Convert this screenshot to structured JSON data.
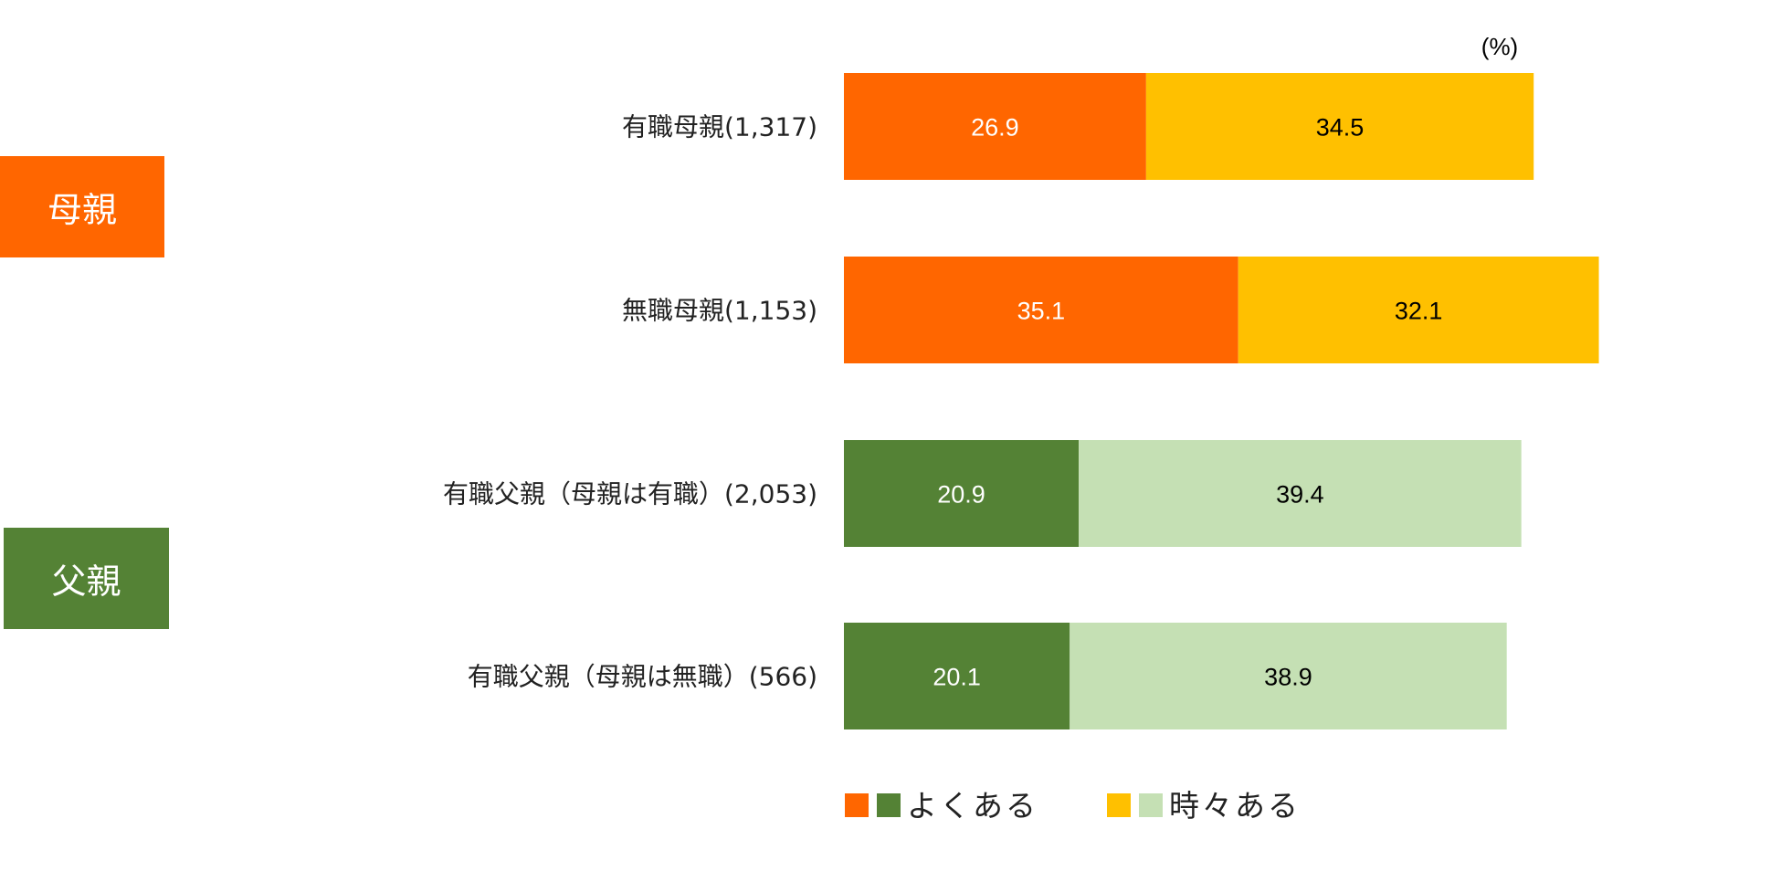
{
  "unit_label": "(%)",
  "groups": [
    {
      "label": "母親"
    },
    {
      "label": "父親"
    }
  ],
  "legend": [
    {
      "label": "よくある",
      "colors": [
        "#ff6600",
        "#548235"
      ]
    },
    {
      "label": "時々ある",
      "colors": [
        "#ffc000",
        "#c5e0b4"
      ]
    }
  ],
  "chart_data": {
    "type": "bar",
    "orientation": "horizontal",
    "stacked": true,
    "unit": "%",
    "categories": [
      "有職母親(1,317)",
      "無職母親(1,153)",
      "有職父親（母親は有職）(2,053)",
      "有職父親（母親は無職）(566)"
    ],
    "series": [
      {
        "name": "よくある",
        "values": [
          26.9,
          35.1,
          20.9,
          20.1
        ],
        "colors": [
          "#ff6600",
          "#ff6600",
          "#548235",
          "#548235"
        ],
        "label_colors": [
          "#ffffff",
          "#ffffff",
          "#ffffff",
          "#ffffff"
        ]
      },
      {
        "name": "時々ある",
        "values": [
          34.5,
          32.1,
          39.4,
          38.9
        ],
        "colors": [
          "#ffc000",
          "#ffc000",
          "#c5e0b4",
          "#c5e0b4"
        ],
        "label_colors": [
          "#000000",
          "#000000",
          "#000000",
          "#000000"
        ]
      }
    ],
    "legend_position": "bottom",
    "grid": false
  }
}
